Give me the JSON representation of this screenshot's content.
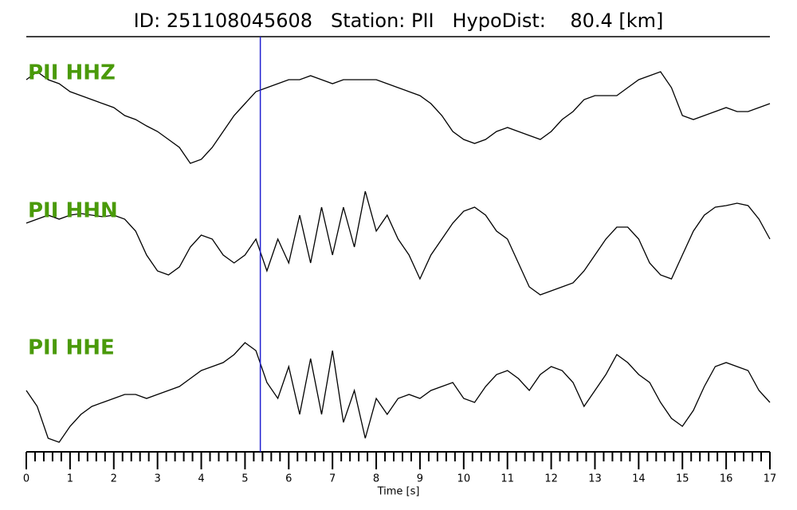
{
  "chart_data": {
    "type": "waveform",
    "title": "ID: 251108045608   Station: PII   HypoDist:    80.4 [km]",
    "xlabel": "Time [s]",
    "xlim": [
      0,
      17
    ],
    "xticks": [
      0,
      1,
      2,
      3,
      4,
      5,
      6,
      7,
      8,
      9,
      10,
      11,
      12,
      13,
      14,
      15,
      16,
      17
    ],
    "ylim": [
      -80,
      80
    ],
    "pick_time": 5.35,
    "pick_color": "#1f1fd0",
    "label_color": "#4a9a0a",
    "x": [
      0,
      0.25,
      0.5,
      0.75,
      1,
      1.25,
      1.5,
      1.75,
      2,
      2.25,
      2.5,
      2.75,
      3,
      3.25,
      3.5,
      3.75,
      4,
      4.25,
      4.5,
      4.75,
      5,
      5.25,
      5.5,
      5.75,
      6,
      6.25,
      6.5,
      6.75,
      7,
      7.25,
      7.5,
      7.75,
      8,
      8.25,
      8.5,
      8.75,
      9,
      9.25,
      9.5,
      9.75,
      10,
      10.25,
      10.5,
      10.75,
      11,
      11.25,
      11.5,
      11.75,
      12,
      12.25,
      12.5,
      12.75,
      13,
      13.25,
      13.5,
      13.75,
      14,
      14.25,
      14.5,
      14.75,
      15,
      15.25,
      15.5,
      15.75,
      16,
      16.25,
      16.5,
      16.75,
      17
    ],
    "series": [
      {
        "name": "PII HHZ",
        "color": "#000000",
        "values": [
          50,
          60,
          50,
          45,
          35,
          30,
          25,
          20,
          15,
          5,
          0,
          -8,
          -15,
          -25,
          -35,
          -55,
          -50,
          -35,
          -15,
          5,
          20,
          35,
          40,
          45,
          50,
          50,
          55,
          50,
          45,
          50,
          50,
          50,
          50,
          45,
          40,
          35,
          30,
          20,
          5,
          -15,
          -25,
          -30,
          -25,
          -15,
          -10,
          -15,
          -20,
          -25,
          -15,
          0,
          10,
          25,
          30,
          30,
          30,
          40,
          50,
          55,
          60,
          40,
          5,
          0,
          5,
          10,
          15,
          10,
          10,
          15,
          20
        ]
      },
      {
        "name": "PII HHN",
        "color": "#000000",
        "values": [
          30,
          35,
          40,
          35,
          40,
          42,
          40,
          38,
          40,
          35,
          20,
          -10,
          -30,
          -35,
          -25,
          0,
          15,
          10,
          -10,
          -20,
          -10,
          10,
          -30,
          10,
          -20,
          40,
          -20,
          50,
          -10,
          50,
          0,
          70,
          20,
          40,
          10,
          -10,
          -40,
          -10,
          10,
          30,
          45,
          50,
          40,
          20,
          10,
          -20,
          -50,
          -60,
          -55,
          -50,
          -45,
          -30,
          -10,
          10,
          25,
          25,
          10,
          -20,
          -35,
          -40,
          -10,
          20,
          40,
          50,
          52,
          55,
          52,
          35,
          10
        ]
      },
      {
        "name": "PII HHE",
        "color": "#000000",
        "values": [
          0,
          -20,
          -60,
          -65,
          -45,
          -30,
          -20,
          -15,
          -10,
          -5,
          -5,
          -10,
          -5,
          0,
          5,
          15,
          25,
          30,
          35,
          45,
          60,
          50,
          10,
          -10,
          30,
          -30,
          40,
          -30,
          50,
          -40,
          0,
          -60,
          -10,
          -30,
          -10,
          -5,
          -10,
          0,
          5,
          10,
          -10,
          -15,
          5,
          20,
          25,
          15,
          0,
          20,
          30,
          25,
          10,
          -20,
          0,
          20,
          45,
          35,
          20,
          10,
          -15,
          -35,
          -45,
          -25,
          5,
          30,
          35,
          30,
          25,
          0,
          -15
        ]
      }
    ]
  }
}
